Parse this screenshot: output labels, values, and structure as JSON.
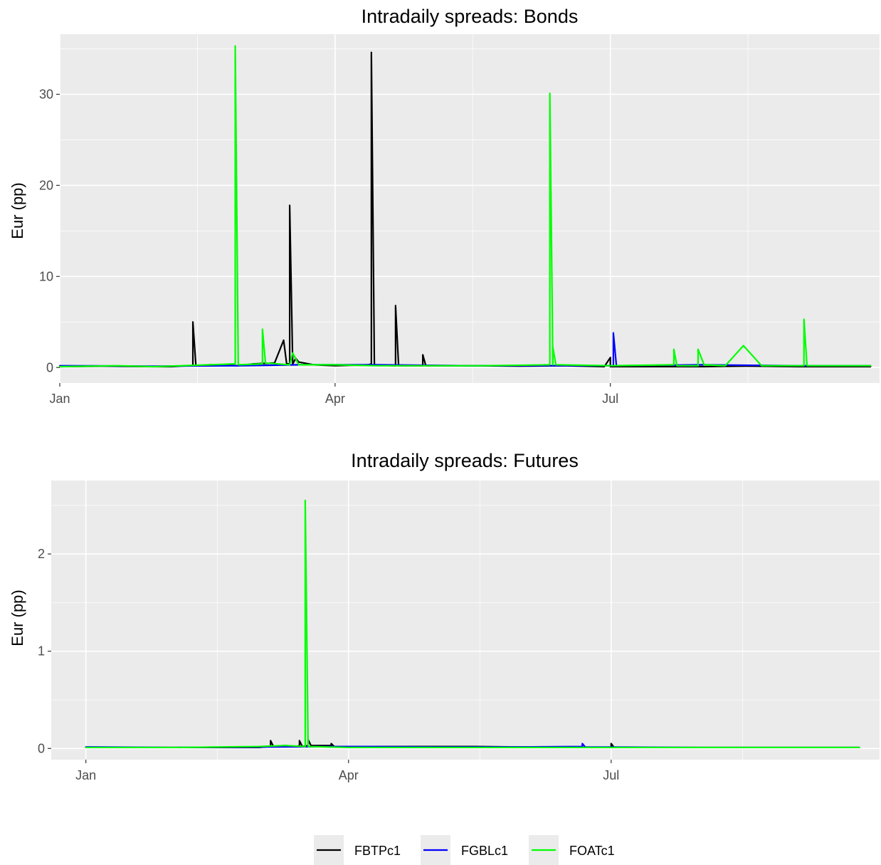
{
  "chart_data": [
    {
      "type": "line",
      "title": "Intradaily spreads: Bonds",
      "xlabel": "",
      "ylabel": "Eur (pp)",
      "x_type": "date",
      "xlim": [
        "2020-01-01",
        "2020-09-28"
      ],
      "ylim": [
        -1.7,
        36.6
      ],
      "x_ticks": [
        {
          "value": "2020-01-01",
          "label": "Jan"
        },
        {
          "value": "2020-04-01",
          "label": "Apr"
        },
        {
          "value": "2020-07-01",
          "label": "Jul"
        }
      ],
      "y_ticks": [
        0,
        10,
        20,
        30
      ],
      "grid": true,
      "legend": "bottom",
      "series": [
        {
          "name": "FBTPc1",
          "color": "#000000",
          "x": [
            "2020-01-01",
            "2020-01-15",
            "2020-02-01",
            "2020-02-07",
            "2020-02-13",
            "2020-02-14",
            "2020-02-14",
            "2020-02-15",
            "2020-02-20",
            "2020-02-29",
            "2020-03-05",
            "2020-03-12",
            "2020-03-15",
            "2020-03-16",
            "2020-03-17",
            "2020-03-17",
            "2020-03-18",
            "2020-03-19",
            "2020-03-20",
            "2020-03-25",
            "2020-04-01",
            "2020-04-12",
            "2020-04-13",
            "2020-04-13",
            "2020-04-14",
            "2020-04-20",
            "2020-04-21",
            "2020-04-21",
            "2020-04-22",
            "2020-04-30",
            "2020-04-30",
            "2020-05-01",
            "2020-05-15",
            "2020-06-01",
            "2020-06-15",
            "2020-06-29",
            "2020-07-01",
            "2020-07-01",
            "2020-07-02",
            "2020-07-15",
            "2020-08-01",
            "2020-08-15",
            "2020-09-01",
            "2020-09-25"
          ],
          "values": [
            0.1,
            0.15,
            0.1,
            0.1,
            0.2,
            0.2,
            5.0,
            0.2,
            0.3,
            0.2,
            0.4,
            0.5,
            3.0,
            0.4,
            0.4,
            17.8,
            0.4,
            1.0,
            0.6,
            0.3,
            0.2,
            0.3,
            0.4,
            34.6,
            0.3,
            0.2,
            0.2,
            6.8,
            0.2,
            0.2,
            1.4,
            0.2,
            0.2,
            0.15,
            0.2,
            0.1,
            1.1,
            0.1,
            0.1,
            0.1,
            0.1,
            0.15,
            0.1,
            0.1
          ]
        },
        {
          "name": "FGBLc1",
          "color": "#0000ff",
          "x": [
            "2020-01-01",
            "2020-02-01",
            "2020-03-01",
            "2020-03-20",
            "2020-04-15",
            "2020-05-15",
            "2020-06-15",
            "2020-07-02",
            "2020-07-02",
            "2020-07-03",
            "2020-08-01",
            "2020-09-01",
            "2020-09-25"
          ],
          "values": [
            0.2,
            0.15,
            0.2,
            0.3,
            0.3,
            0.2,
            0.2,
            0.2,
            3.8,
            0.2,
            0.3,
            0.2,
            0.2
          ]
        },
        {
          "name": "FOATc1",
          "color": "#00ff00",
          "x": [
            "2020-01-01",
            "2020-01-20",
            "2020-02-01",
            "2020-02-20",
            "2020-02-28",
            "2020-02-28",
            "2020-02-29",
            "2020-03-08",
            "2020-03-08",
            "2020-03-09",
            "2020-03-17",
            "2020-03-18",
            "2020-03-20",
            "2020-04-01",
            "2020-04-15",
            "2020-05-01",
            "2020-05-20",
            "2020-06-11",
            "2020-06-11",
            "2020-06-12",
            "2020-06-12",
            "2020-06-13",
            "2020-07-01",
            "2020-07-22",
            "2020-07-22",
            "2020-07-23",
            "2020-07-30",
            "2020-07-30",
            "2020-08-01",
            "2020-08-08",
            "2020-08-14",
            "2020-08-20",
            "2020-09-03",
            "2020-09-03",
            "2020-09-04",
            "2020-09-25"
          ],
          "values": [
            0.1,
            0.2,
            0.1,
            0.3,
            0.4,
            35.3,
            0.3,
            0.4,
            4.2,
            0.5,
            0.3,
            1.6,
            0.3,
            0.3,
            0.2,
            0.2,
            0.2,
            0.3,
            30.1,
            0.3,
            2.2,
            0.3,
            0.2,
            0.3,
            2.0,
            0.2,
            0.2,
            2.0,
            0.3,
            0.2,
            2.4,
            0.2,
            0.2,
            5.3,
            0.2,
            0.2
          ]
        }
      ]
    },
    {
      "type": "line",
      "title": "Intradaily spreads: Futures",
      "xlabel": "",
      "ylabel": "Eur (pp)",
      "x_type": "date",
      "xlim": [
        "2019-12-20",
        "2020-10-02"
      ],
      "ylim": [
        -0.115,
        2.755
      ],
      "x_ticks": [
        {
          "value": "2020-01-01",
          "label": "Jan"
        },
        {
          "value": "2020-04-01",
          "label": "Apr"
        },
        {
          "value": "2020-07-01",
          "label": "Jul"
        }
      ],
      "y_ticks": [
        0,
        1,
        2
      ],
      "grid": true,
      "legend": "bottom",
      "series": [
        {
          "name": "FBTPc1",
          "color": "#000000",
          "x": [
            "2020-01-01",
            "2020-02-01",
            "2020-03-01",
            "2020-03-05",
            "2020-03-05",
            "2020-03-06",
            "2020-03-10",
            "2020-03-14",
            "2020-03-15",
            "2020-03-15",
            "2020-03-16",
            "2020-03-18",
            "2020-03-18",
            "2020-03-19",
            "2020-03-26",
            "2020-03-26",
            "2020-03-27",
            "2020-04-15",
            "2020-05-15",
            "2020-06-15",
            "2020-07-01",
            "2020-07-01",
            "2020-07-02",
            "2020-08-15",
            "2020-09-25"
          ],
          "values": [
            0.01,
            0.01,
            0.01,
            0.02,
            0.08,
            0.02,
            0.03,
            0.02,
            0.03,
            0.08,
            0.02,
            0.03,
            0.09,
            0.03,
            0.03,
            0.05,
            0.02,
            0.02,
            0.02,
            0.01,
            0.01,
            0.05,
            0.01,
            0.01,
            0.01
          ]
        },
        {
          "name": "FGBLc1",
          "color": "#0000ff",
          "x": [
            "2020-01-01",
            "2020-02-01",
            "2020-03-01",
            "2020-04-01",
            "2020-05-01",
            "2020-06-01",
            "2020-06-21",
            "2020-06-21",
            "2020-06-22",
            "2020-08-01",
            "2020-09-25"
          ],
          "values": [
            0.015,
            0.01,
            0.015,
            0.02,
            0.015,
            0.015,
            0.02,
            0.05,
            0.015,
            0.01,
            0.01
          ]
        },
        {
          "name": "FOATc1",
          "color": "#00ff00",
          "x": [
            "2020-01-01",
            "2020-02-01",
            "2020-03-01",
            "2020-03-10",
            "2020-03-17",
            "2020-03-17",
            "2020-03-18",
            "2020-04-01",
            "2020-05-01",
            "2020-06-01",
            "2020-07-01",
            "2020-08-01",
            "2020-09-25"
          ],
          "values": [
            0.01,
            0.01,
            0.02,
            0.03,
            0.02,
            2.55,
            0.02,
            0.01,
            0.01,
            0.01,
            0.01,
            0.01,
            0.01
          ]
        }
      ]
    }
  ],
  "legend": {
    "entries": [
      {
        "label": "FBTPc1",
        "color": "#000000"
      },
      {
        "label": "FGBLc1",
        "color": "#0000ff"
      },
      {
        "label": "FOATc1",
        "color": "#00ff00"
      }
    ]
  }
}
